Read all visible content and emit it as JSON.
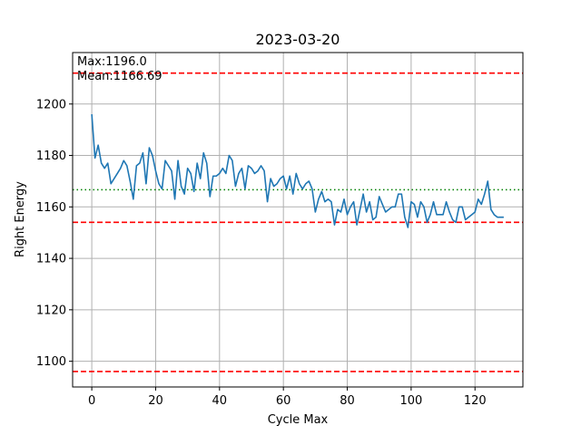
{
  "chart_data": {
    "type": "line",
    "title": "2023-03-20",
    "xlabel": "Cycle Max",
    "ylabel": "Right Energy",
    "xlim": [
      -6,
      135
    ],
    "ylim": [
      1090,
      1220
    ],
    "xticks": [
      0,
      20,
      40,
      60,
      80,
      100,
      120
    ],
    "yticks": [
      1100,
      1120,
      1140,
      1160,
      1180,
      1200
    ],
    "grid": true,
    "annotations": {
      "max_label": "Max:1196.0",
      "mean_label": "Mean:1166.69"
    },
    "hlines": [
      {
        "y": 1212,
        "style": "dashed",
        "color": "#ff0000"
      },
      {
        "y": 1154,
        "style": "dashed",
        "color": "#ff0000"
      },
      {
        "y": 1096,
        "style": "dashed",
        "color": "#ff0000"
      },
      {
        "y": 1166.69,
        "style": "dotted",
        "color": "#008000"
      }
    ],
    "series": [
      {
        "color": "#1f77b4",
        "values": [
          1196,
          1179,
          1184,
          1177,
          1175,
          1177,
          1169,
          1171,
          1173,
          1175,
          1178,
          1176,
          1170,
          1163,
          1176,
          1177,
          1181,
          1169,
          1183,
          1180,
          1174,
          1169,
          1167,
          1178,
          1176,
          1174,
          1163,
          1178,
          1168,
          1165,
          1175,
          1173,
          1166,
          1177,
          1171,
          1181,
          1177,
          1164,
          1172,
          1172,
          1173,
          1175,
          1173,
          1180,
          1178,
          1168,
          1173,
          1175,
          1167,
          1176,
          1175,
          1173,
          1174,
          1176,
          1174,
          1162,
          1171,
          1168,
          1169,
          1171,
          1172,
          1167,
          1172,
          1165,
          1173,
          1169,
          1167,
          1169,
          1170,
          1167,
          1158,
          1163,
          1166,
          1162,
          1163,
          1162,
          1153,
          1159,
          1158,
          1163,
          1157,
          1160,
          1162,
          1153,
          1159,
          1165,
          1158,
          1162,
          1155,
          1156,
          1164,
          1161,
          1158,
          1159,
          1160,
          1160,
          1165,
          1165,
          1156,
          1152,
          1162,
          1161,
          1156,
          1162,
          1160,
          1154,
          1157,
          1162,
          1157,
          1157,
          1157,
          1162,
          1158,
          1155,
          1154,
          1160,
          1160,
          1155,
          1156,
          1157,
          1158,
          1163,
          1161,
          1165,
          1170,
          1159,
          1157,
          1156,
          1156,
          1156
        ]
      }
    ]
  }
}
